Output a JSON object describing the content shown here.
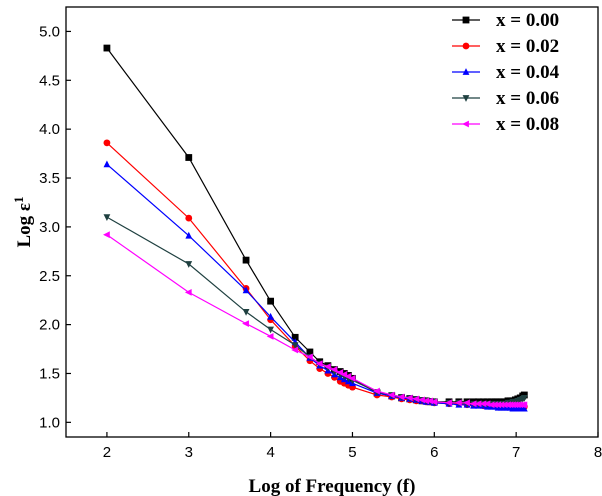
{
  "chart_data": {
    "type": "line",
    "xlabel": "Log of Frequency (f)",
    "ylabel_main": "Log ε",
    "ylabel_sup": "1",
    "xlim": [
      1.5,
      8
    ],
    "ylim": [
      0.85,
      5.25
    ],
    "x_ticks": [
      2,
      3,
      4,
      5,
      6,
      7,
      8
    ],
    "y_ticks": [
      1.0,
      1.5,
      2.0,
      2.5,
      3.0,
      3.5,
      4.0,
      4.5,
      5.0
    ],
    "x_tick_labels": [
      "2",
      "3",
      "4",
      "5",
      "6",
      "7",
      "8"
    ],
    "y_tick_labels": [
      "1.0",
      "1.5",
      "2.0",
      "2.5",
      "3.0",
      "3.5",
      "4.0",
      "4.5",
      "5.0"
    ],
    "grid": false,
    "legend_position": "top-right",
    "series": [
      {
        "name": "x = 0.00",
        "color": "#000000",
        "marker": "square",
        "x": [
          2.0,
          3.0,
          3.7,
          4.0,
          4.3,
          4.48,
          4.6,
          4.7,
          4.78,
          4.85,
          4.9,
          4.95,
          5.0,
          5.3,
          5.48,
          5.6,
          5.7,
          5.78,
          5.85,
          5.9,
          5.95,
          6.0,
          6.18,
          6.3,
          6.4,
          6.48,
          6.54,
          6.6,
          6.65,
          6.7,
          6.74,
          6.78,
          6.82,
          6.86,
          6.9,
          6.93,
          6.96,
          6.99,
          7.02,
          7.05,
          7.08,
          7.1
        ],
        "y": [
          4.83,
          3.71,
          2.66,
          2.24,
          1.87,
          1.72,
          1.62,
          1.58,
          1.54,
          1.52,
          1.5,
          1.48,
          1.45,
          1.3,
          1.27,
          1.25,
          1.24,
          1.23,
          1.22,
          1.22,
          1.21,
          1.21,
          1.21,
          1.21,
          1.21,
          1.21,
          1.21,
          1.21,
          1.21,
          1.21,
          1.21,
          1.21,
          1.21,
          1.21,
          1.22,
          1.22,
          1.22,
          1.23,
          1.24,
          1.25,
          1.27,
          1.28
        ]
      },
      {
        "name": "x = 0.02",
        "color": "#ff0000",
        "marker": "circle",
        "x": [
          2.0,
          3.0,
          3.7,
          4.0,
          4.3,
          4.48,
          4.6,
          4.7,
          4.78,
          4.85,
          4.9,
          4.95,
          5.0,
          5.3,
          5.48,
          5.6,
          5.7,
          5.78,
          5.85,
          5.9,
          5.95,
          6.0,
          6.18,
          6.3,
          6.4,
          6.48,
          6.54,
          6.6,
          6.65,
          6.7,
          6.74,
          6.78,
          6.82,
          6.86,
          6.9,
          6.93,
          6.96,
          6.99,
          7.02,
          7.05,
          7.08,
          7.1
        ],
        "y": [
          3.86,
          3.09,
          2.37,
          2.05,
          1.78,
          1.63,
          1.55,
          1.5,
          1.46,
          1.42,
          1.4,
          1.38,
          1.36,
          1.28,
          1.26,
          1.24,
          1.23,
          1.22,
          1.22,
          1.21,
          1.21,
          1.2,
          1.19,
          1.19,
          1.18,
          1.18,
          1.18,
          1.17,
          1.17,
          1.17,
          1.17,
          1.16,
          1.16,
          1.16,
          1.16,
          1.16,
          1.16,
          1.16,
          1.16,
          1.16,
          1.16,
          1.16
        ]
      },
      {
        "name": "x = 0.04",
        "color": "#0000ff",
        "marker": "triangle-up",
        "x": [
          2.0,
          3.0,
          3.7,
          4.0,
          4.3,
          4.48,
          4.6,
          4.7,
          4.78,
          4.85,
          4.9,
          4.95,
          5.0,
          5.3,
          5.48,
          5.6,
          5.7,
          5.78,
          5.85,
          5.9,
          5.95,
          6.0,
          6.18,
          6.3,
          6.4,
          6.48,
          6.54,
          6.6,
          6.65,
          6.7,
          6.74,
          6.78,
          6.82,
          6.86,
          6.9,
          6.93,
          6.96,
          6.99,
          7.02,
          7.05,
          7.08,
          7.1
        ],
        "y": [
          3.64,
          2.91,
          2.35,
          2.08,
          1.82,
          1.66,
          1.58,
          1.53,
          1.49,
          1.46,
          1.44,
          1.42,
          1.4,
          1.3,
          1.27,
          1.25,
          1.24,
          1.23,
          1.22,
          1.21,
          1.21,
          1.2,
          1.19,
          1.18,
          1.18,
          1.17,
          1.17,
          1.17,
          1.16,
          1.16,
          1.16,
          1.15,
          1.15,
          1.15,
          1.15,
          1.15,
          1.14,
          1.14,
          1.14,
          1.14,
          1.14,
          1.14
        ]
      },
      {
        "name": "x = 0.06",
        "color": "#1f4040",
        "marker": "triangle-down",
        "x": [
          2.0,
          3.0,
          3.7,
          4.0,
          4.3,
          4.48,
          4.6,
          4.7,
          4.78,
          4.85,
          4.9,
          4.95,
          5.0,
          5.3,
          5.48,
          5.6,
          5.7,
          5.78,
          5.85,
          5.9,
          5.95,
          6.0,
          6.18,
          6.3,
          6.4,
          6.48,
          6.54,
          6.6,
          6.65,
          6.7,
          6.74,
          6.78,
          6.82,
          6.86,
          6.9,
          6.93,
          6.96,
          6.99,
          7.02,
          7.05,
          7.08,
          7.1
        ],
        "y": [
          3.1,
          2.62,
          2.13,
          1.95,
          1.79,
          1.67,
          1.6,
          1.56,
          1.52,
          1.49,
          1.47,
          1.45,
          1.43,
          1.31,
          1.28,
          1.26,
          1.25,
          1.24,
          1.23,
          1.22,
          1.22,
          1.21,
          1.2,
          1.2,
          1.19,
          1.19,
          1.19,
          1.19,
          1.19,
          1.19,
          1.19,
          1.19,
          1.19,
          1.19,
          1.2,
          1.2,
          1.21,
          1.21,
          1.22,
          1.23,
          1.24,
          1.25
        ]
      },
      {
        "name": "x = 0.08",
        "color": "#ff00ff",
        "marker": "triangle-left",
        "x": [
          2.0,
          3.0,
          3.7,
          4.0,
          4.3,
          4.48,
          4.6,
          4.7,
          4.78,
          4.85,
          4.9,
          4.95,
          5.0,
          5.3,
          5.48,
          5.6,
          5.7,
          5.78,
          5.85,
          5.9,
          5.95,
          6.0,
          6.18,
          6.3,
          6.4,
          6.48,
          6.54,
          6.6,
          6.65,
          6.7,
          6.74,
          6.78,
          6.82,
          6.86,
          6.9,
          6.93,
          6.96,
          6.99,
          7.02,
          7.05,
          7.08,
          7.1
        ],
        "y": [
          2.92,
          2.33,
          2.01,
          1.88,
          1.74,
          1.67,
          1.6,
          1.57,
          1.54,
          1.51,
          1.49,
          1.47,
          1.45,
          1.32,
          1.28,
          1.26,
          1.25,
          1.24,
          1.23,
          1.22,
          1.22,
          1.21,
          1.2,
          1.2,
          1.2,
          1.19,
          1.19,
          1.19,
          1.19,
          1.18,
          1.18,
          1.18,
          1.18,
          1.18,
          1.18,
          1.18,
          1.18,
          1.18,
          1.18,
          1.18,
          1.18,
          1.18
        ]
      }
    ]
  }
}
